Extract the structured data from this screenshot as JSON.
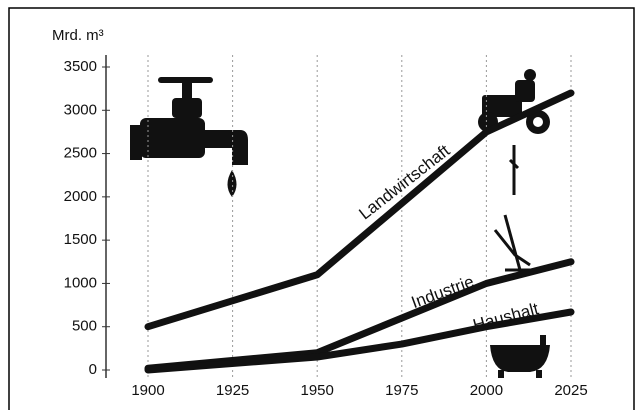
{
  "chart_data": {
    "type": "line",
    "y_label": "Mrd. m³",
    "xlim": [
      1900,
      2025
    ],
    "xticks": [
      1900,
      1925,
      1950,
      1975,
      2000,
      2025
    ],
    "ylim": [
      0,
      3500
    ],
    "yticks": [
      0,
      500,
      1000,
      1500,
      2000,
      2500,
      3000,
      3500
    ],
    "grid": "x",
    "series": [
      {
        "name": "Landwirtschaft",
        "color": "#111111",
        "x": [
          1900,
          1950,
          2000,
          2025
        ],
        "values": [
          500,
          1100,
          2750,
          3200
        ]
      },
      {
        "name": "Industrie",
        "color": "#111111",
        "x": [
          1900,
          1950,
          2000,
          2025
        ],
        "values": [
          20,
          200,
          1000,
          1250
        ]
      },
      {
        "name": "Haushalt",
        "color": "#111111",
        "x": [
          1900,
          1950,
          1975,
          2000,
          2025
        ],
        "values": [
          0,
          150,
          300,
          500,
          670
        ]
      }
    ]
  }
}
